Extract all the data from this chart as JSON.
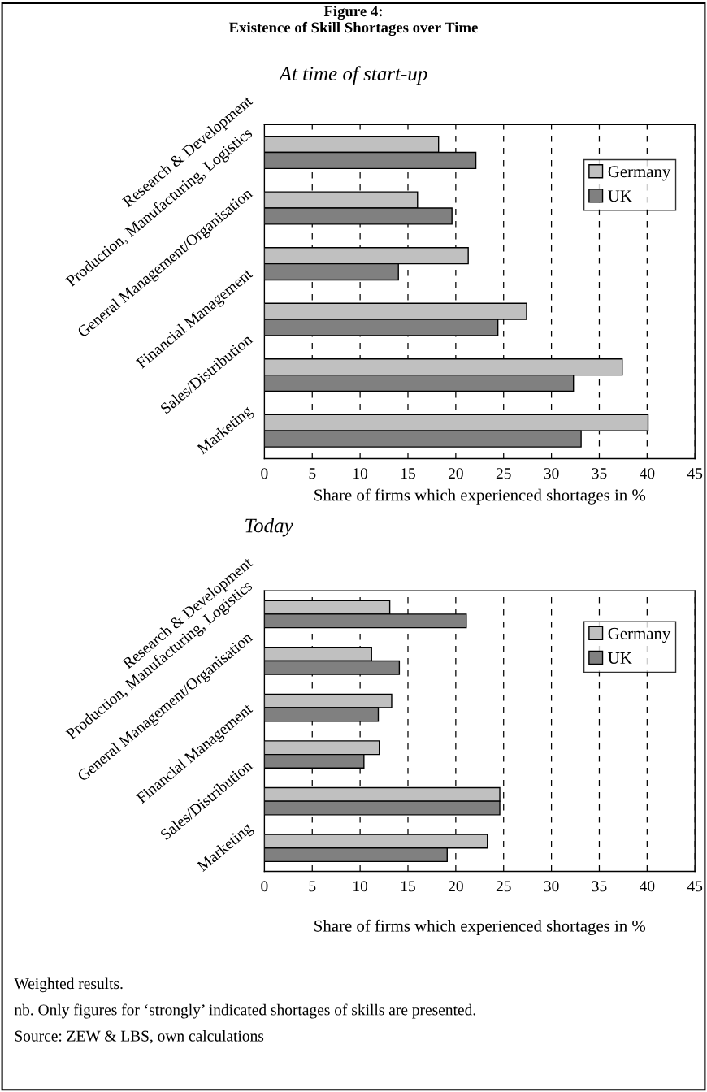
{
  "chart_data": [
    {
      "type": "bar",
      "orientation": "horizontal",
      "title": "Figure 4:\nExistence of Skill Shortages over Time",
      "subtitle": "At time of start-up",
      "xlabel": "Share of firms which experienced shortages in %",
      "categories": [
        "Research & Development",
        "Production, Manufacturing, Logistics",
        "General Management/Organisation",
        "Financial Management",
        "Sales/Distribution",
        "Marketing"
      ],
      "series": [
        {
          "name": "Germany",
          "color": "#c0c0c0",
          "values": [
            18.2,
            16.0,
            21.3,
            27.4,
            37.4,
            40.1
          ]
        },
        {
          "name": "UK",
          "color": "#808080",
          "values": [
            22.1,
            19.6,
            14.0,
            24.4,
            32.3,
            33.1
          ]
        }
      ],
      "xlim": [
        0,
        45
      ],
      "xticks": [
        0,
        5,
        10,
        15,
        20,
        25,
        30,
        35,
        40,
        45
      ],
      "grid": "x",
      "legend": "top right"
    },
    {
      "type": "bar",
      "orientation": "horizontal",
      "title": "Today",
      "xlabel": "Share of firms which experienced shortages in %",
      "categories": [
        "Research & Development",
        "Production, Manufacturing, Logistics",
        "General Management/Organisation",
        "Financial Management",
        "Sales/Distribution",
        "Marketing"
      ],
      "series": [
        {
          "name": "Germany",
          "color": "#c0c0c0",
          "values": [
            13.1,
            11.2,
            13.3,
            12.0,
            24.6,
            23.3
          ]
        },
        {
          "name": "UK",
          "color": "#808080",
          "values": [
            21.1,
            14.1,
            11.9,
            10.4,
            24.6,
            19.1
          ]
        }
      ],
      "xlim": [
        0,
        45
      ],
      "xticks": [
        0,
        5,
        10,
        15,
        20,
        25,
        30,
        35,
        40,
        45
      ],
      "grid": "x",
      "legend": "top right",
      "annotations": [
        "Weighted results.",
        "nb. Only figures for ‘strongly’ indicated shortages of skills are presented.",
        "Source: ZEW & LBS, own calculations"
      ]
    }
  ]
}
